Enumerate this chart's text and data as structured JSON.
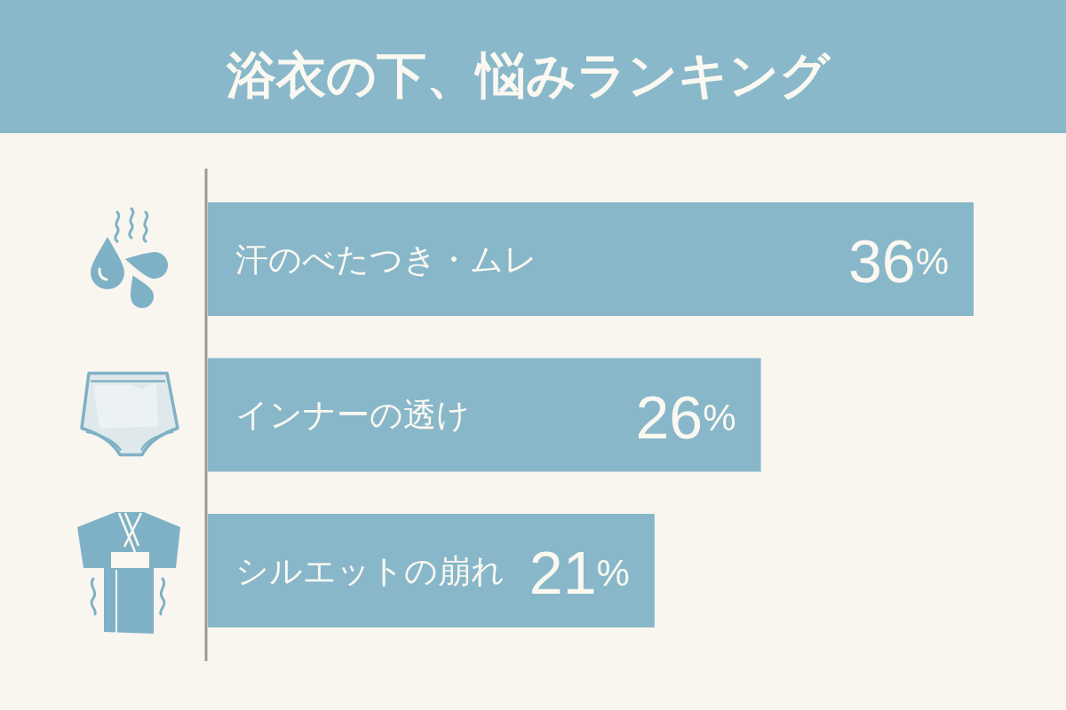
{
  "chart_data": {
    "type": "bar",
    "orientation": "horizontal",
    "title": "浴衣の下、悩みランキング",
    "categories": [
      "汗のべたつき・ムレ",
      "インナーの透け",
      "シルエットの崩れ"
    ],
    "values": [
      36,
      26,
      21
    ],
    "value_labels": [
      "36%",
      "26%",
      "21%"
    ],
    "color": "#88b7ca"
  }
}
